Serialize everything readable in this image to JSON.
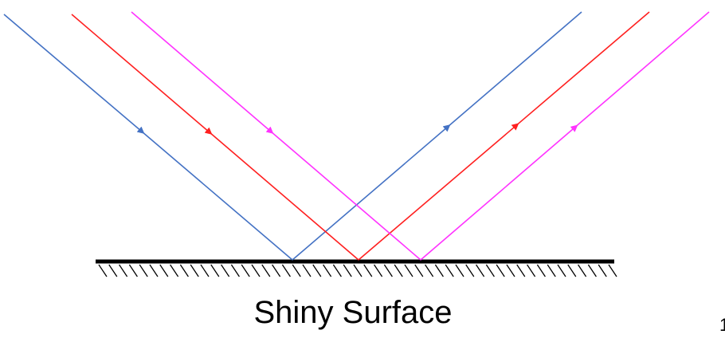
{
  "label": "Shiny Surface",
  "page_number": "1"
}
